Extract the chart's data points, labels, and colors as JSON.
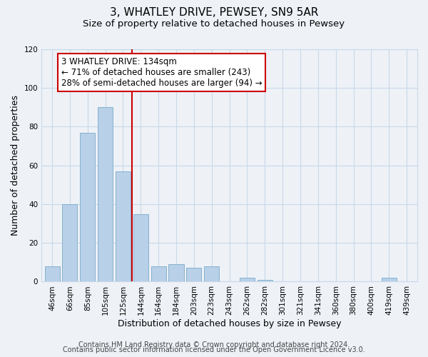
{
  "title": "3, WHATLEY DRIVE, PEWSEY, SN9 5AR",
  "subtitle": "Size of property relative to detached houses in Pewsey",
  "xlabel": "Distribution of detached houses by size in Pewsey",
  "ylabel": "Number of detached properties",
  "bar_labels": [
    "46sqm",
    "66sqm",
    "85sqm",
    "105sqm",
    "125sqm",
    "144sqm",
    "164sqm",
    "184sqm",
    "203sqm",
    "223sqm",
    "243sqm",
    "262sqm",
    "282sqm",
    "301sqm",
    "321sqm",
    "341sqm",
    "360sqm",
    "380sqm",
    "400sqm",
    "419sqm",
    "439sqm"
  ],
  "bar_values": [
    8,
    40,
    77,
    90,
    57,
    35,
    8,
    9,
    7,
    8,
    0,
    2,
    1,
    0,
    0,
    0,
    0,
    0,
    0,
    2,
    0
  ],
  "bar_color": "#b8d0e8",
  "bar_edge_color": "#7aaac8",
  "vline_color": "#cc0000",
  "vline_x_index": 4.5,
  "annotation_text": "3 WHATLEY DRIVE: 134sqm\n← 71% of detached houses are smaller (243)\n28% of semi-detached houses are larger (94) →",
  "annotation_box_color": "#ffffff",
  "annotation_box_edge_color": "#cc0000",
  "ylim": [
    0,
    120
  ],
  "yticks": [
    0,
    20,
    40,
    60,
    80,
    100,
    120
  ],
  "footer_line1": "Contains HM Land Registry data © Crown copyright and database right 2024.",
  "footer_line2": "Contains public sector information licensed under the Open Government Licence v3.0.",
  "background_color": "#eef2f7",
  "plot_background_color": "#eef2f7",
  "grid_color": "#c8d8e8",
  "title_fontsize": 11,
  "subtitle_fontsize": 9.5,
  "axis_label_fontsize": 9,
  "tick_fontsize": 7.5,
  "annotation_fontsize": 8.5,
  "footer_fontsize": 7
}
